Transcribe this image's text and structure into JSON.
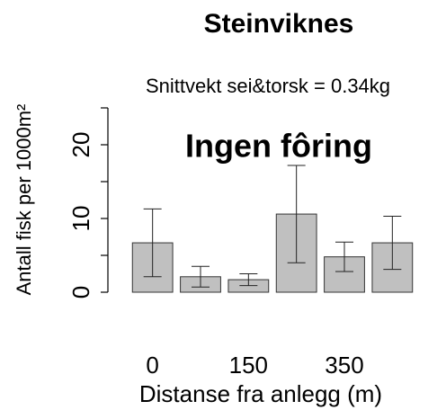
{
  "chart_data": {
    "type": "bar",
    "title": "Steinviknes",
    "subtitle": "Snittvekt sei&torsk = 0.34kg",
    "annotation": "Ingen fôring",
    "x_label": "Distanse fra anlegg (m)",
    "y_label": "Antall fisk per 1000m²",
    "categories": [
      "0",
      null,
      "150",
      null,
      "350",
      null
    ],
    "values": [
      6.7,
      2.1,
      1.7,
      10.6,
      4.8,
      6.7
    ],
    "errors": [
      4.6,
      1.4,
      0.8,
      6.6,
      2.0,
      3.6
    ],
    "color": "#c0c0c0",
    "annotation_color": "#1fb04b",
    "ylim": [
      0,
      25
    ],
    "yticks": [
      0,
      10,
      20
    ],
    "yminor_ticks": [
      5,
      15,
      25
    ],
    "grid": false
  }
}
